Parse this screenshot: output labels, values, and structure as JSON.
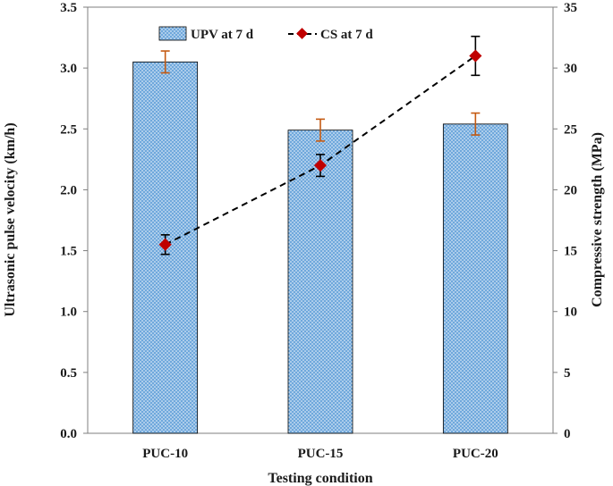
{
  "chart_data": {
    "type": "bar",
    "categories": [
      "PUC-10",
      "PUC-15",
      "PUC-20"
    ],
    "xlabel": "Testing condition",
    "ylabel": "Ultrasonic pulse velocity (km/h)",
    "ylabel_right": "Compressive strength (MPa)",
    "ylim": [
      0,
      3.5
    ],
    "yticks": [
      "0.0",
      "0.5",
      "1.0",
      "1.5",
      "2.0",
      "2.5",
      "3.0",
      "3.5"
    ],
    "ylim_right": [
      0,
      35
    ],
    "yticks_right": [
      "0",
      "5",
      "10",
      "15",
      "20",
      "25",
      "30",
      "35"
    ],
    "series": [
      {
        "name": "UPV at 7 d",
        "kind": "bar",
        "axis": "left",
        "values": [
          3.05,
          2.49,
          2.54
        ],
        "errors": [
          0.09,
          0.09,
          0.09
        ],
        "color": "#5b9bd5",
        "error_color": "#c55a11"
      },
      {
        "name": "CS at 7 d",
        "kind": "line",
        "axis": "right",
        "values": [
          15.5,
          22.0,
          31.0
        ],
        "errors": [
          0.8,
          0.9,
          1.6
        ],
        "color": "#c00000",
        "line_color": "#000000",
        "line_style": "dashed"
      }
    ],
    "legend_position": "top"
  }
}
